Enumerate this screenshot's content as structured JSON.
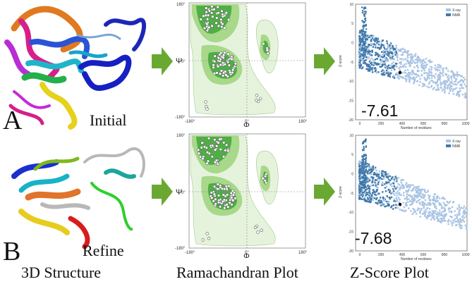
{
  "row_a": {
    "letter": "A",
    "structure_label": "Initial",
    "z_score": "-7.61"
  },
  "row_b": {
    "letter": "B",
    "structure_label": "Refine",
    "z_score": "-7.68"
  },
  "captions": {
    "structure": "3D Structure",
    "ramachandran": "Ramachandran Plot",
    "zscore": "Z-Score Plot"
  },
  "ramachandran": {
    "psi_axis": "Ψ",
    "phi_axis": "Φ",
    "tick_180_top": "180°",
    "tick_0_y": "0°",
    "tick_neg180_bottom": "-180°",
    "tick_neg180_x": "-180°",
    "tick_0_x": "0°",
    "tick_180_x": "180°"
  },
  "zplot": {
    "ylabel": "Z-score",
    "xlabel": "Number of residues",
    "legend_xray": "X-ray",
    "legend_nmr": "NMR",
    "y_ticks": [
      "10",
      "5",
      "0",
      "-5",
      "-10",
      "-15",
      "-20"
    ],
    "x_ticks": [
      "0",
      "200",
      "400",
      "600",
      "800",
      "1000"
    ]
  },
  "colors": {
    "arrow_green": "#6aa832",
    "rama_light": "#e6f3dc",
    "rama_mid": "#a8d88a",
    "rama_dark": "#4fae45",
    "xray_blue": "#a9c4e3",
    "nmr_blue": "#3f78aa"
  }
}
